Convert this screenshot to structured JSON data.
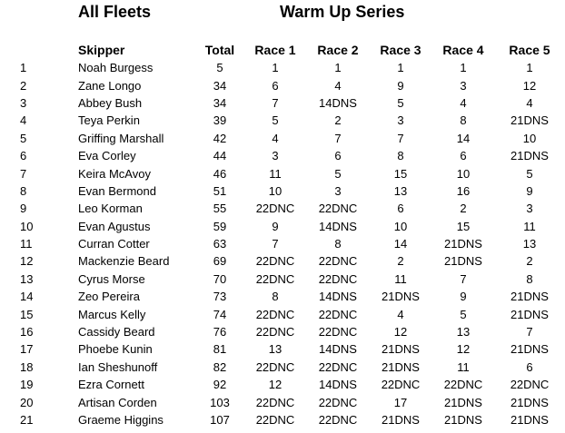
{
  "title_left": "All Fleets",
  "title_right": "Warm Up Series",
  "columns": {
    "position": "",
    "skipper": "Skipper",
    "total": "Total",
    "race1": "Race 1",
    "race2": "Race 2",
    "race3": "Race 3",
    "race4": "Race 4",
    "race5": "Race 5"
  },
  "rows": [
    {
      "pos": "1",
      "skipper": "Noah Burgess",
      "total": "5",
      "r1": "1",
      "r2": "1",
      "r3": "1",
      "r4": "1",
      "r5": "1"
    },
    {
      "pos": "2",
      "skipper": "Zane Longo",
      "total": "34",
      "r1": "6",
      "r2": "4",
      "r3": "9",
      "r4": "3",
      "r5": "12"
    },
    {
      "pos": "3",
      "skipper": "Abbey Bush",
      "total": "34",
      "r1": "7",
      "r2": "14DNS",
      "r3": "5",
      "r4": "4",
      "r5": "4"
    },
    {
      "pos": "4",
      "skipper": "Teya Perkin",
      "total": "39",
      "r1": "5",
      "r2": "2",
      "r3": "3",
      "r4": "8",
      "r5": "21DNS"
    },
    {
      "pos": "5",
      "skipper": "Griffing Marshall",
      "total": "42",
      "r1": "4",
      "r2": "7",
      "r3": "7",
      "r4": "14",
      "r5": "10"
    },
    {
      "pos": "6",
      "skipper": "Eva Corley",
      "total": "44",
      "r1": "3",
      "r2": "6",
      "r3": "8",
      "r4": "6",
      "r5": "21DNS"
    },
    {
      "pos": "7",
      "skipper": "Keira McAvoy",
      "total": "46",
      "r1": "11",
      "r2": "5",
      "r3": "15",
      "r4": "10",
      "r5": "5"
    },
    {
      "pos": "8",
      "skipper": "Evan Bermond",
      "total": "51",
      "r1": "10",
      "r2": "3",
      "r3": "13",
      "r4": "16",
      "r5": "9"
    },
    {
      "pos": "9",
      "skipper": "Leo Korman",
      "total": "55",
      "r1": "22DNC",
      "r2": "22DNC",
      "r3": "6",
      "r4": "2",
      "r5": "3"
    },
    {
      "pos": "10",
      "skipper": "Evan Agustus",
      "total": "59",
      "r1": "9",
      "r2": "14DNS",
      "r3": "10",
      "r4": "15",
      "r5": "11"
    },
    {
      "pos": "11",
      "skipper": "Curran Cotter",
      "total": "63",
      "r1": "7",
      "r2": "8",
      "r3": "14",
      "r4": "21DNS",
      "r5": "13"
    },
    {
      "pos": "12",
      "skipper": "Mackenzie Beard",
      "total": "69",
      "r1": "22DNC",
      "r2": "22DNC",
      "r3": "2",
      "r4": "21DNS",
      "r5": "2"
    },
    {
      "pos": "13",
      "skipper": "Cyrus Morse",
      "total": "70",
      "r1": "22DNC",
      "r2": "22DNC",
      "r3": "11",
      "r4": "7",
      "r5": "8"
    },
    {
      "pos": "14",
      "skipper": "Zeo Pereira",
      "total": "73",
      "r1": "8",
      "r2": "14DNS",
      "r3": "21DNS",
      "r4": "9",
      "r5": "21DNS"
    },
    {
      "pos": "15",
      "skipper": "Marcus Kelly",
      "total": "74",
      "r1": "22DNC",
      "r2": "22DNC",
      "r3": "4",
      "r4": "5",
      "r5": "21DNS"
    },
    {
      "pos": "16",
      "skipper": "Cassidy Beard",
      "total": "76",
      "r1": "22DNC",
      "r2": "22DNC",
      "r3": "12",
      "r4": "13",
      "r5": "7"
    },
    {
      "pos": "17",
      "skipper": "Phoebe Kunin",
      "total": "81",
      "r1": "13",
      "r2": "14DNS",
      "r3": "21DNS",
      "r4": "12",
      "r5": "21DNS"
    },
    {
      "pos": "18",
      "skipper": "Ian Sheshunoff",
      "total": "82",
      "r1": "22DNC",
      "r2": "22DNC",
      "r3": "21DNS",
      "r4": "11",
      "r5": "6"
    },
    {
      "pos": "19",
      "skipper": "Ezra Cornett",
      "total": "92",
      "r1": "12",
      "r2": "14DNS",
      "r3": "22DNC",
      "r4": "22DNC",
      "r5": "22DNC"
    },
    {
      "pos": "20",
      "skipper": "Artisan Corden",
      "total": "103",
      "r1": "22DNC",
      "r2": "22DNC",
      "r3": "17",
      "r4": "21DNS",
      "r5": "21DNS"
    },
    {
      "pos": "21",
      "skipper": "Graeme Higgins",
      "total": "107",
      "r1": "22DNC",
      "r2": "22DNC",
      "r3": "21DNS",
      "r4": "21DNS",
      "r5": "21DNS"
    }
  ]
}
